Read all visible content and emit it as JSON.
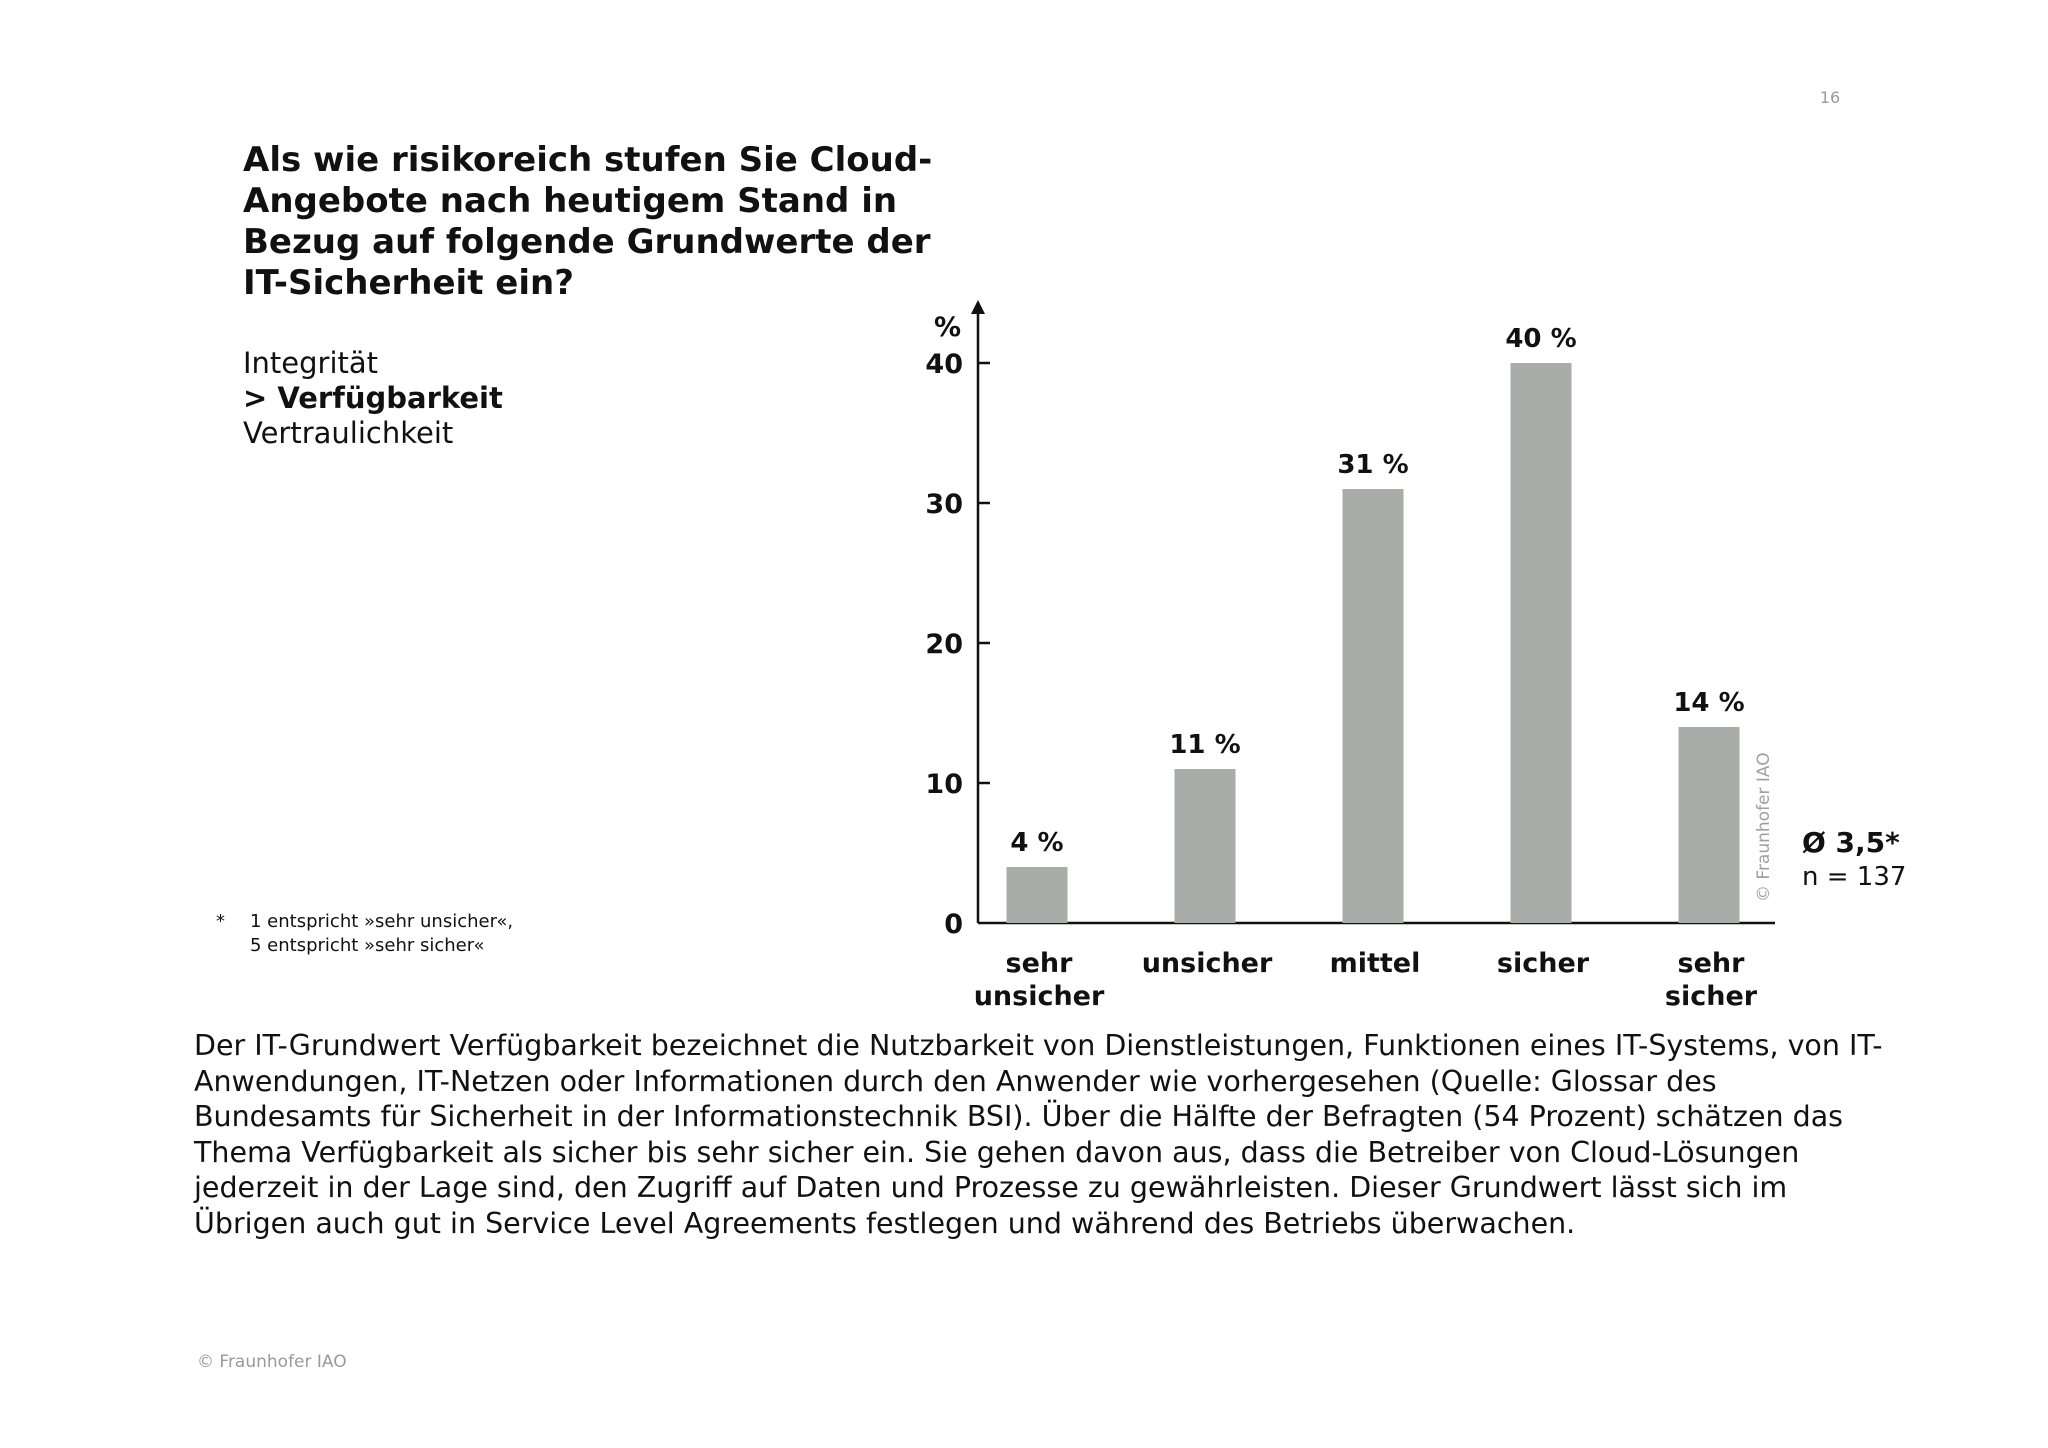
{
  "page_number": "16",
  "question": {
    "lines": [
      "Als wie risikoreich stufen Sie Cloud-",
      "Angebote nach heutigem Stand in",
      "Bezug auf folgende Grundwerte der",
      "IT-Sicherheit ein?"
    ]
  },
  "options": {
    "items": [
      "Integrität",
      "> Verfügbarkeit",
      "Vertraulichkeit"
    ],
    "active_index": 1
  },
  "footnote": {
    "marker": "*",
    "lines": [
      "1 entspricht »sehr unsicher«,",
      "5 entspricht »sehr sicher«"
    ]
  },
  "summary": {
    "mean": "Ø 3,5*",
    "n": "n = 137"
  },
  "description": {
    "lines": [
      "Der IT-Grundwert Verfügbarkeit bezeichnet die Nutzbarkeit von Dienstleistungen, Funktionen eines IT-Systems, von IT-",
      "Anwendungen, IT-Netzen oder Informationen durch den Anwender wie vorhergesehen (Quelle: Glossar des",
      "Bundesamts für Sicherheit in der Informationstechnik BSI). Über die Hälfte der Befragten (54 Prozent) schätzen das",
      "Thema Verfügbarkeit als sicher bis sehr sicher ein. Sie gehen davon aus, dass die Betreiber von Cloud-Lösungen",
      "jederzeit in der Lage sind, den Zugriff auf Daten und Prozesse zu gewährleisten. Dieser Grundwert lässt sich im",
      "Übrigen auch gut in Service Level Agreements festlegen und während des Betriebs überwachen."
    ]
  },
  "copyright": "© Fraunhofer IAO",
  "chart_watermark": "© Fraunhofer IAO",
  "colors": {
    "bar": "#a9adaa",
    "axis": "#111111",
    "text": "#111111",
    "muted": "#9a9a9a"
  },
  "chart_data": {
    "type": "bar",
    "categories": [
      [
        "sehr",
        "unsicher"
      ],
      [
        "unsicher"
      ],
      [
        "mittel"
      ],
      [
        "sicher"
      ],
      [
        "sehr",
        "sicher"
      ]
    ],
    "values": [
      4,
      11,
      31,
      40,
      14
    ],
    "value_labels": [
      "4 %",
      "11 %",
      "31 %",
      "40 %",
      "14 %"
    ],
    "ylabel": "%",
    "yticks": [
      0,
      10,
      20,
      30,
      40
    ],
    "ylim": [
      0,
      40
    ],
    "grid": false,
    "legend": "none"
  }
}
